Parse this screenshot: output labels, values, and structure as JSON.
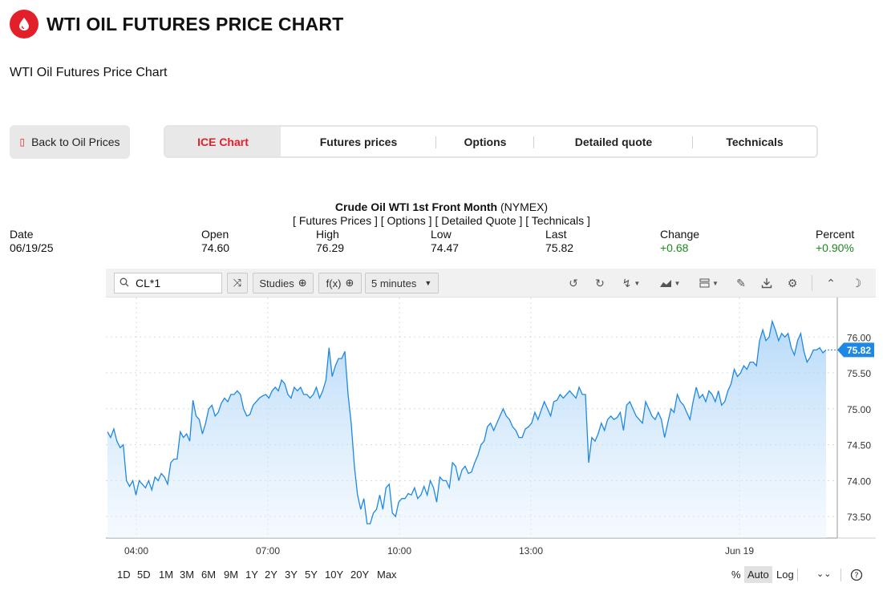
{
  "header": {
    "title": "WTI OIL FUTURES PRICE CHART",
    "subtitle": "WTI Oil Futures Price Chart"
  },
  "back_button": {
    "label": "Back to Oil Prices"
  },
  "tabs": [
    {
      "label": "ICE Chart",
      "active": true
    },
    {
      "label": "Futures prices"
    },
    {
      "label": "Options"
    },
    {
      "label": "Detailed quote"
    },
    {
      "label": "Technicals"
    }
  ],
  "quote": {
    "name": "Crude Oil WTI 1st Front Month",
    "exchange": "(NYMEX)",
    "links": "[ Futures Prices ] [ Options ] [ Detailed Quote ] [ Technicals ]",
    "stats": [
      {
        "label": "Date",
        "value": "06/19/25"
      },
      {
        "label": "Open",
        "value": "74.60"
      },
      {
        "label": "High",
        "value": "76.29"
      },
      {
        "label": "Low",
        "value": "74.47"
      },
      {
        "label": "Last",
        "value": "75.82"
      },
      {
        "label": "Change",
        "value": "+0.68"
      },
      {
        "label": "Percent",
        "value": "+0.90%"
      }
    ]
  },
  "toolbar": {
    "symbol": "CL*1",
    "studies_label": "Studies",
    "fx_label": "f(x)",
    "interval": "5 minutes"
  },
  "range_buttons": [
    "1D",
    "5D",
    "1M",
    "3M",
    "6M",
    "9M",
    "1Y",
    "2Y",
    "3Y",
    "5Y",
    "10Y",
    "20Y",
    "Max"
  ],
  "scale_buttons": {
    "percent": "%",
    "auto": "Auto",
    "log": "Log"
  },
  "colors": {
    "accent": "#e3202a",
    "line": "#1e88e5",
    "positive": "#1e8a1e"
  },
  "chart_data": {
    "type": "area",
    "symbol": "CL*1",
    "x_ticks": [
      "04:00",
      "07:00",
      "10:00",
      "13:00",
      "Jun 19"
    ],
    "y_ticks": [
      73.5,
      74.0,
      74.5,
      75.0,
      75.5,
      76.0
    ],
    "ylim": [
      73.2,
      76.55
    ],
    "last_value": 75.82,
    "last_label": "75.82",
    "grid": true,
    "series": [
      {
        "values": [
          74.68,
          74.6,
          74.72,
          74.55,
          74.46,
          74.5,
          74.0,
          73.92,
          74.0,
          73.8,
          74.0,
          73.95,
          73.9,
          74.0,
          73.87,
          74.05,
          74.0,
          74.1,
          74.05,
          73.95,
          74.25,
          74.3,
          74.3,
          74.68,
          74.6,
          74.65,
          74.55,
          75.12,
          74.9,
          74.85,
          74.65,
          74.8,
          75.0,
          75.05,
          74.9,
          74.95,
          75.08,
          75.15,
          75.1,
          75.2,
          75.2,
          75.25,
          75.2,
          75.0,
          74.9,
          74.92,
          75.05,
          75.1,
          75.15,
          75.18,
          75.2,
          75.15,
          75.25,
          75.3,
          75.25,
          75.4,
          75.35,
          75.2,
          75.15,
          75.3,
          75.25,
          75.3,
          75.2,
          75.2,
          75.15,
          75.2,
          75.3,
          75.15,
          75.25,
          75.4,
          75.85,
          75.45,
          75.6,
          75.7,
          75.7,
          75.8,
          75.2,
          74.8,
          74.2,
          73.8,
          73.6,
          73.75,
          73.4,
          73.4,
          73.55,
          73.6,
          73.8,
          73.6,
          73.9,
          73.95,
          73.55,
          73.5,
          73.7,
          73.75,
          73.75,
          73.82,
          73.8,
          73.9,
          73.75,
          73.8,
          73.92,
          73.8,
          74.0,
          73.9,
          73.7,
          74.05,
          74.0,
          74.0,
          73.9,
          74.25,
          74.2,
          74.0,
          74.15,
          74.2,
          74.1,
          74.12,
          74.25,
          74.35,
          74.5,
          74.55,
          74.75,
          74.8,
          74.7,
          74.8,
          74.9,
          75.0,
          74.9,
          74.85,
          74.75,
          74.7,
          74.6,
          74.6,
          74.72,
          74.75,
          74.8,
          74.95,
          74.85,
          74.98,
          75.1,
          75.0,
          74.9,
          75.1,
          75.12,
          75.2,
          75.15,
          75.2,
          75.25,
          75.2,
          75.15,
          75.3,
          75.2,
          75.2,
          74.25,
          74.6,
          74.55,
          74.65,
          74.8,
          74.7,
          74.85,
          74.9,
          74.85,
          74.88,
          74.95,
          74.7,
          75.05,
          75.1,
          75.0,
          74.9,
          74.85,
          74.8,
          75.1,
          75.0,
          74.9,
          74.85,
          74.95,
          74.85,
          74.6,
          74.8,
          75.0,
          74.95,
          75.2,
          75.1,
          75.05,
          74.95,
          74.85,
          75.1,
          75.3,
          75.15,
          75.2,
          75.1,
          75.25,
          75.2,
          75.1,
          75.25,
          75.05,
          75.1,
          75.25,
          75.35,
          75.55,
          75.45,
          75.5,
          75.6,
          75.55,
          75.65,
          75.65,
          75.6,
          75.95,
          76.1,
          75.95,
          76.0,
          76.22,
          76.1,
          75.95,
          76.05,
          76.0,
          76.05,
          75.85,
          75.75,
          75.95,
          76.05,
          75.8,
          75.65,
          75.72,
          75.82,
          75.82,
          75.85,
          75.78,
          75.82
        ]
      }
    ]
  }
}
